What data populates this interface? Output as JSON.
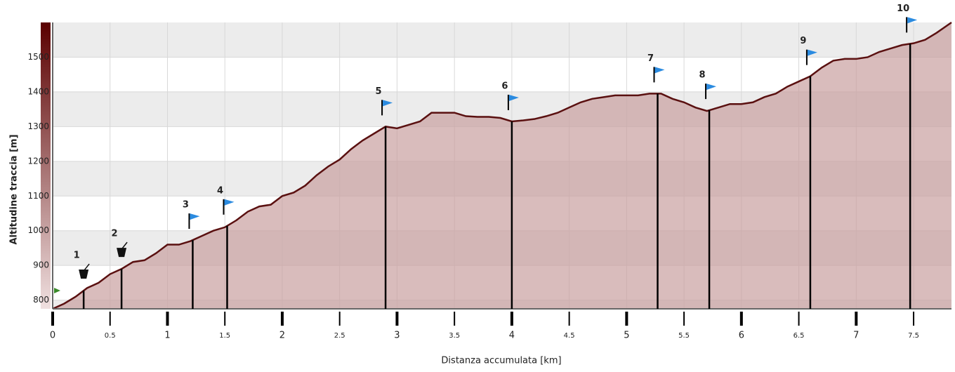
{
  "chart_data": {
    "type": "area",
    "y_label": "Altitudine traccia [m]",
    "x_label": "Distanza accumulata [km]",
    "color": "#5a1010",
    "fill": "#c9a0a0",
    "grid": true,
    "xlim": [
      0,
      7.83
    ],
    "ylim": [
      775,
      1600
    ],
    "yticks": [
      800,
      900,
      1000,
      1100,
      1200,
      1300,
      1400,
      1500
    ],
    "xticks": [
      0,
      0.5,
      1,
      1.5,
      2,
      2.5,
      3,
      3.5,
      4,
      4.5,
      5,
      5.5,
      6,
      6.5,
      7,
      7.5
    ],
    "x": [
      0,
      0.1,
      0.2,
      0.3,
      0.4,
      0.5,
      0.6,
      0.7,
      0.8,
      0.9,
      1.0,
      1.1,
      1.2,
      1.3,
      1.4,
      1.5,
      1.6,
      1.7,
      1.8,
      1.9,
      2.0,
      2.1,
      2.2,
      2.3,
      2.4,
      2.5,
      2.6,
      2.7,
      2.8,
      2.9,
      3.0,
      3.1,
      3.2,
      3.3,
      3.4,
      3.5,
      3.6,
      3.7,
      3.8,
      3.9,
      4.0,
      4.1,
      4.2,
      4.3,
      4.4,
      4.5,
      4.6,
      4.7,
      4.8,
      4.9,
      5.0,
      5.1,
      5.2,
      5.3,
      5.4,
      5.5,
      5.6,
      5.7,
      5.8,
      5.9,
      6.0,
      6.1,
      6.2,
      6.3,
      6.4,
      6.5,
      6.6,
      6.7,
      6.8,
      6.9,
      7.0,
      7.1,
      7.2,
      7.3,
      7.4,
      7.5,
      7.6,
      7.7,
      7.83
    ],
    "values": [
      775,
      790,
      810,
      835,
      850,
      875,
      890,
      910,
      915,
      935,
      960,
      960,
      970,
      985,
      1000,
      1010,
      1030,
      1055,
      1070,
      1075,
      1100,
      1110,
      1130,
      1160,
      1185,
      1205,
      1235,
      1260,
      1280,
      1300,
      1295,
      1305,
      1315,
      1340,
      1340,
      1340,
      1330,
      1328,
      1328,
      1325,
      1315,
      1318,
      1322,
      1330,
      1340,
      1355,
      1370,
      1380,
      1385,
      1390,
      1390,
      1390,
      1395,
      1395,
      1380,
      1370,
      1355,
      1345,
      1355,
      1365,
      1365,
      1370,
      1385,
      1395,
      1415,
      1430,
      1445,
      1470,
      1490,
      1495,
      1495,
      1500,
      1515,
      1525,
      1535,
      1540,
      1550,
      1570,
      1600
    ],
    "waypoints": [
      {
        "label": "1",
        "x": 0.27,
        "icon": "cup"
      },
      {
        "label": "2",
        "x": 0.6,
        "icon": "cup"
      },
      {
        "label": "3",
        "x": 1.22,
        "icon": "flag"
      },
      {
        "label": "4",
        "x": 1.52,
        "icon": "flag"
      },
      {
        "label": "5",
        "x": 2.9,
        "icon": "flag"
      },
      {
        "label": "6",
        "x": 4.0,
        "icon": "flag"
      },
      {
        "label": "7",
        "x": 5.27,
        "icon": "flag"
      },
      {
        "label": "8",
        "x": 5.72,
        "icon": "flag"
      },
      {
        "label": "9",
        "x": 6.6,
        "icon": "flag"
      },
      {
        "label": "10",
        "x": 7.47,
        "icon": "flag"
      }
    ]
  }
}
